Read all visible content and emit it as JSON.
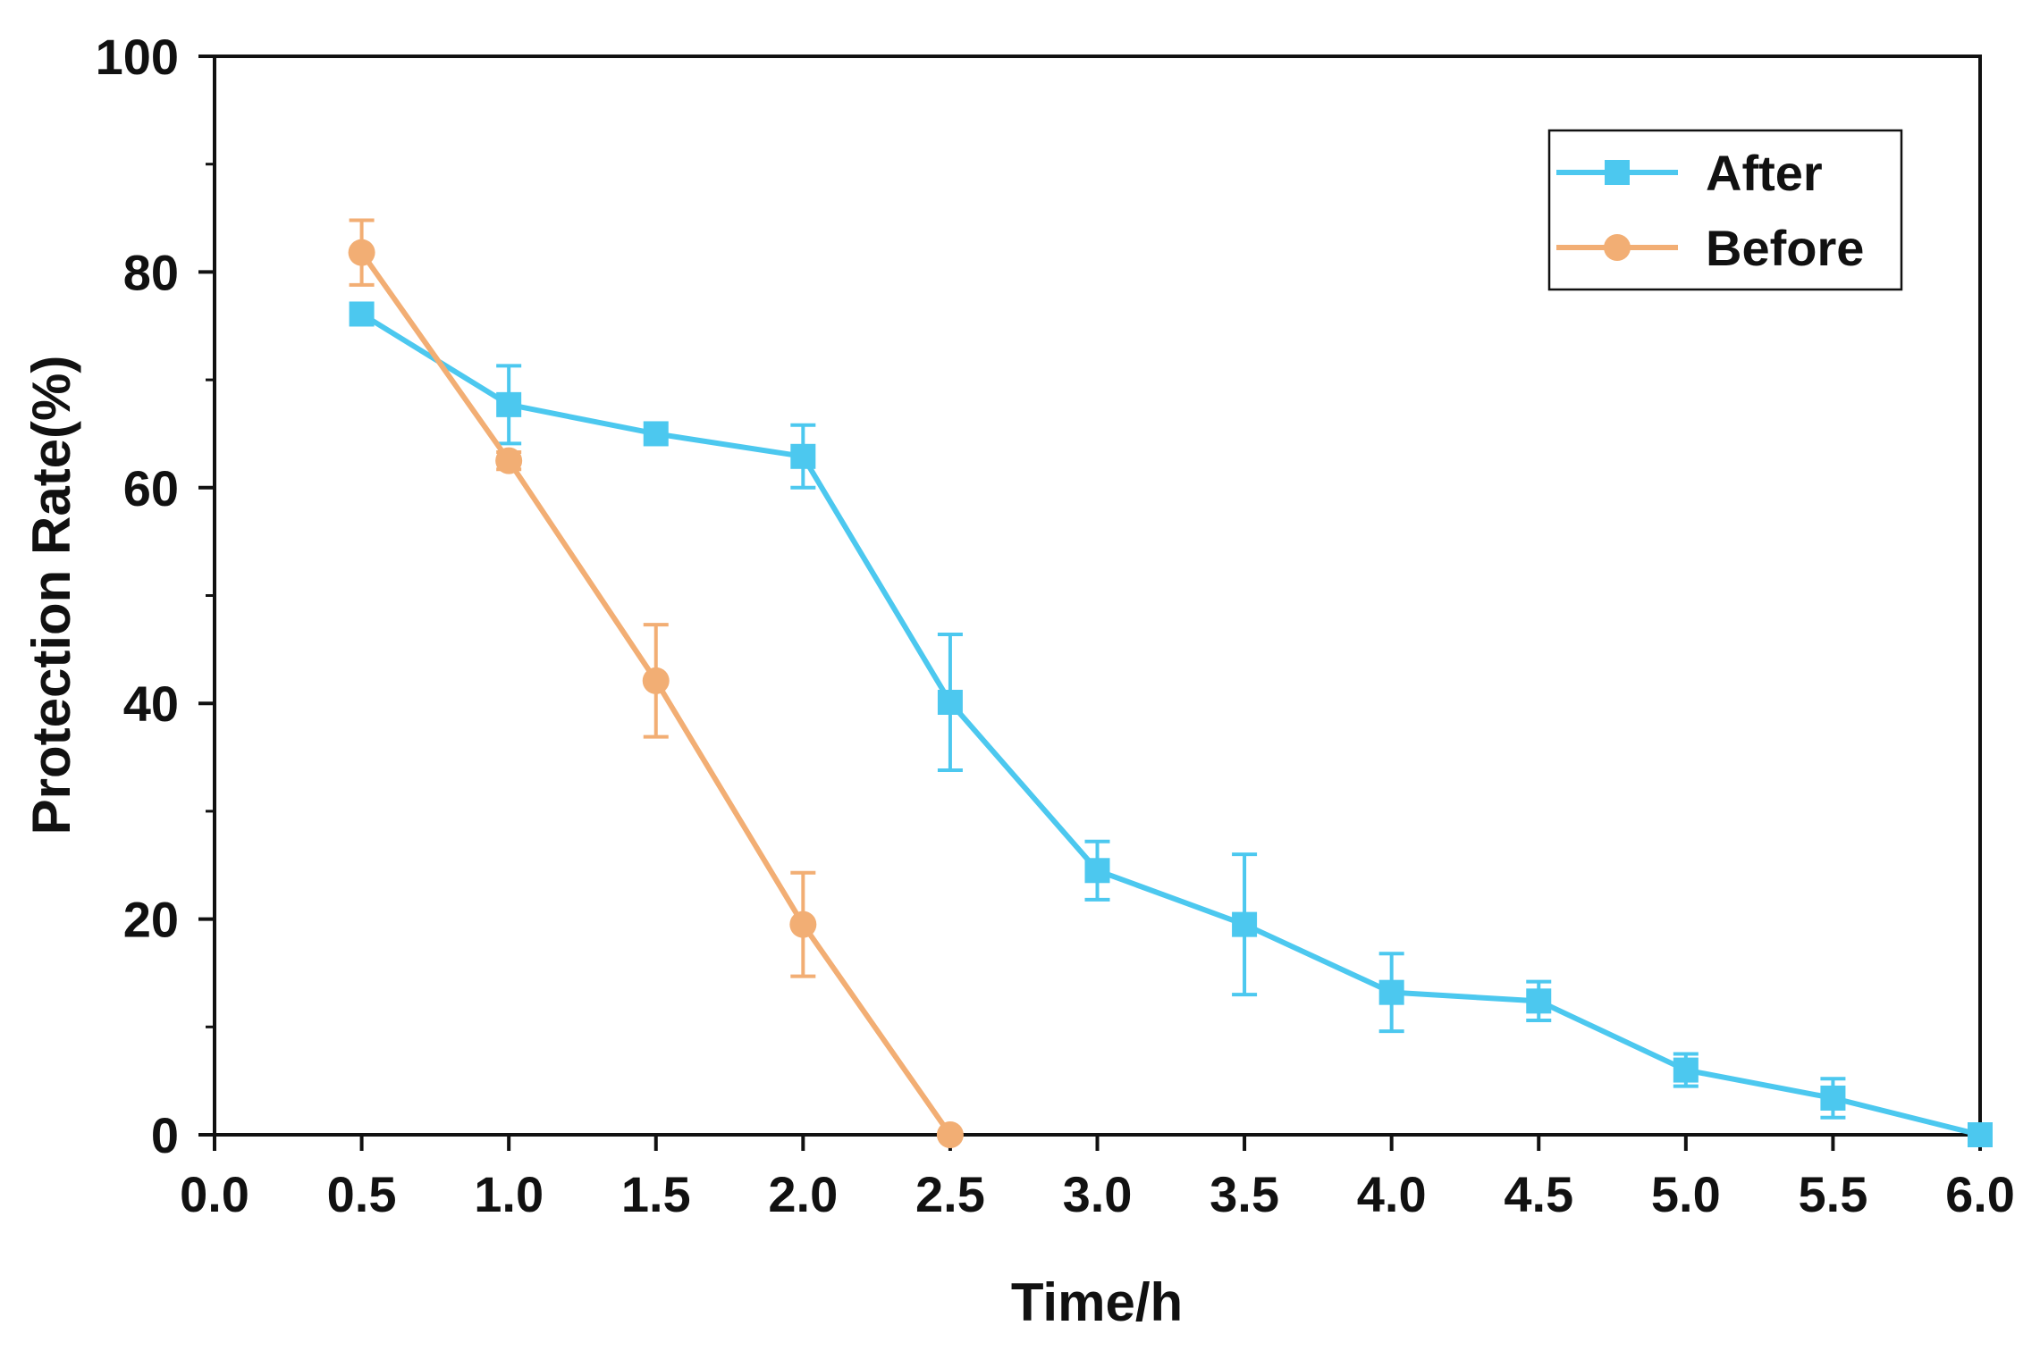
{
  "chart_data": {
    "type": "line",
    "title": "",
    "xlabel": "Time/h",
    "ylabel": "Protection Rate(%)",
    "xlim": [
      0,
      6
    ],
    "ylim": [
      0,
      100
    ],
    "xticks": [
      "0.0",
      "0.5",
      "1.0",
      "1.5",
      "2.0",
      "2.5",
      "3.0",
      "3.5",
      "4.0",
      "4.5",
      "5.0",
      "5.5",
      "6.0"
    ],
    "yticks": [
      "0",
      "20",
      "40",
      "60",
      "80",
      "100"
    ],
    "grid": false,
    "legend_position": "top-right",
    "series": [
      {
        "name": "After",
        "color": "#4cc8ef",
        "marker": "square",
        "x": [
          0.5,
          1.0,
          1.5,
          2.0,
          2.5,
          3.0,
          3.5,
          4.0,
          4.5,
          5.0,
          5.5,
          6.0
        ],
        "y": [
          76.1,
          67.7,
          65.0,
          62.9,
          40.1,
          24.5,
          19.5,
          13.2,
          12.4,
          6.0,
          3.4,
          0.0
        ],
        "error": [
          0,
          3.6,
          0,
          2.9,
          6.3,
          2.7,
          6.5,
          3.6,
          1.8,
          1.5,
          1.8,
          0
        ]
      },
      {
        "name": "Before",
        "color": "#f2ae74",
        "marker": "circle",
        "x": [
          0.5,
          1.0,
          1.5,
          2.0,
          2.5
        ],
        "y": [
          81.8,
          62.5,
          42.1,
          19.5,
          0.0
        ],
        "error": [
          3.0,
          0.8,
          5.2,
          4.8,
          0
        ]
      }
    ]
  }
}
